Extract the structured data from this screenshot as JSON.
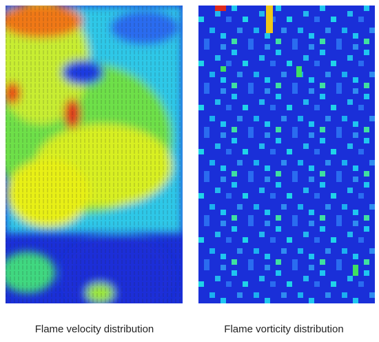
{
  "panels": [
    {
      "caption": "Flame velocity distribution"
    },
    {
      "caption": "Flame vorticity distribution"
    }
  ]
}
